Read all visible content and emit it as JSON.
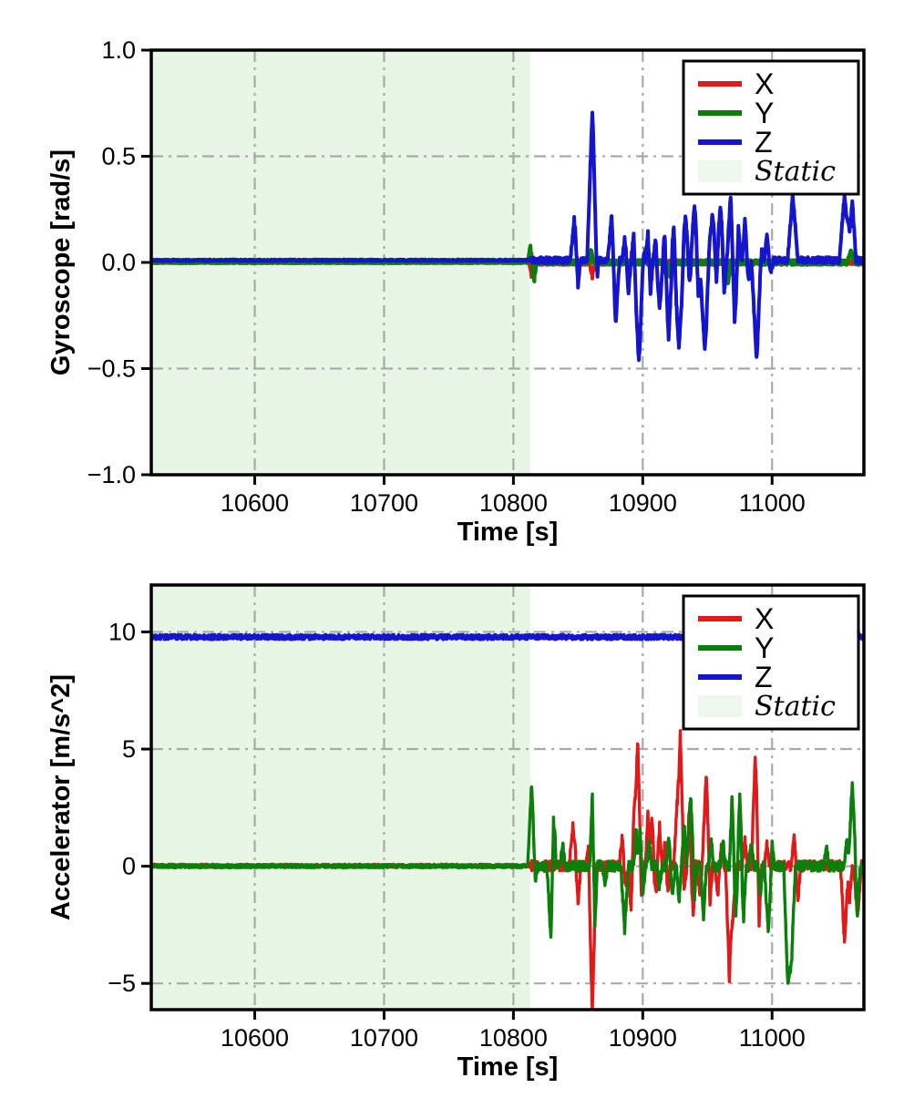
{
  "figure": {
    "background": "#ffffff"
  },
  "colors": {
    "x": "#e01a1a",
    "y": "#0a800a",
    "z": "#1515cd",
    "static_region": "#e8f6e6",
    "legend_swatch": "#edf8ec",
    "grid": "#a9a9a9",
    "axis": "#000000",
    "text": "#000000",
    "legend_bg": "#ffffff"
  },
  "chart_data": [
    {
      "id": "gyroscope",
      "type": "line",
      "title": "",
      "xlabel": "Time [s]",
      "ylabel": "Gyroscope [rad/s]",
      "xlim": [
        10520,
        11071
      ],
      "ylim": [
        -1.0,
        1.0
      ],
      "grid": "dash-dot",
      "xticks": [
        {
          "v": 10600,
          "label": "10600"
        },
        {
          "v": 10700,
          "label": "10700"
        },
        {
          "v": 10800,
          "label": "10800"
        },
        {
          "v": 10900,
          "label": "10900"
        },
        {
          "v": 11000,
          "label": "11000"
        }
      ],
      "yticks": [
        {
          "v": 1.0,
          "label": "1.0"
        },
        {
          "v": 0.5,
          "label": "0.5"
        },
        {
          "v": 0.0,
          "label": "0.0"
        },
        {
          "v": -0.5,
          "label": "−0.5"
        },
        {
          "v": -1.0,
          "label": "−1.0"
        }
      ],
      "static_region": {
        "t0": 10520,
        "t1": 10813
      },
      "legend": {
        "position": "top-right",
        "entries": [
          {
            "label": "X",
            "color": "x"
          },
          {
            "label": "Y",
            "color": "y"
          },
          {
            "label": "Z",
            "color": "z"
          },
          {
            "label": "Static",
            "swatch": "region",
            "italic": true
          }
        ]
      },
      "series": [
        {
          "name": "X",
          "color": "x",
          "seed": 1,
          "baseline": 0.0,
          "noise": [
            [
              10520,
              10813,
              0.004
            ],
            [
              10813,
              11071,
              0.012
            ]
          ],
          "spikes": [
            [
              10814,
              -0.06,
              2
            ],
            [
              10861,
              -0.07,
              2
            ],
            [
              10918,
              -0.05,
              2
            ]
          ]
        },
        {
          "name": "Y",
          "color": "y",
          "seed": 2,
          "baseline": 0.0,
          "noise": [
            [
              10520,
              10813,
              0.004
            ],
            [
              10813,
              11071,
              0.012
            ]
          ],
          "spikes": [
            [
              10813,
              0.08,
              2
            ],
            [
              10816,
              -0.09,
              2
            ],
            [
              10860,
              0.06,
              2
            ],
            [
              10902,
              0.06,
              2
            ],
            [
              10921,
              -0.07,
              2
            ],
            [
              10966,
              -0.1,
              2
            ],
            [
              11061,
              0.05,
              3
            ]
          ]
        },
        {
          "name": "Z",
          "color": "z",
          "seed": 3,
          "baseline": 0.01,
          "noise": [
            [
              10520,
              10813,
              0.004
            ],
            [
              10813,
              11071,
              0.015
            ]
          ],
          "spikes": [
            [
              10847,
              0.19,
              3
            ],
            [
              10850,
              -0.12,
              2
            ],
            [
              10861,
              0.71,
              4
            ],
            [
              10864,
              -0.13,
              2
            ],
            [
              10876,
              0.22,
              3
            ],
            [
              10879,
              -0.3,
              3
            ],
            [
              10886,
              0.1,
              2
            ],
            [
              10889,
              -0.15,
              2
            ],
            [
              10893,
              0.12,
              2
            ],
            [
              10897,
              -0.48,
              4
            ],
            [
              10900,
              0.08,
              2
            ],
            [
              10904,
              0.13,
              2
            ],
            [
              10906,
              -0.16,
              2
            ],
            [
              10910,
              0.1,
              2
            ],
            [
              10913,
              -0.22,
              3
            ],
            [
              10917,
              0.12,
              2
            ],
            [
              10920,
              -0.36,
              3
            ],
            [
              10924,
              0.17,
              2
            ],
            [
              10928,
              -0.41,
              4
            ],
            [
              10933,
              0.21,
              3
            ],
            [
              10936,
              -0.1,
              2
            ],
            [
              10940,
              0.26,
              3
            ],
            [
              10943,
              -0.18,
              2
            ],
            [
              10948,
              -0.43,
              4
            ],
            [
              10951,
              0.1,
              2
            ],
            [
              10954,
              0.22,
              3
            ],
            [
              10957,
              -0.1,
              2
            ],
            [
              10960,
              0.26,
              3
            ],
            [
              10963,
              -0.15,
              2
            ],
            [
              10968,
              0.31,
              3
            ],
            [
              10971,
              -0.28,
              3
            ],
            [
              10974,
              0.15,
              2
            ],
            [
              10979,
              0.19,
              2
            ],
            [
              10982,
              -0.1,
              2
            ],
            [
              10988,
              -0.47,
              4
            ],
            [
              10991,
              0.08,
              2
            ],
            [
              10996,
              0.12,
              2
            ],
            [
              10999,
              -0.06,
              2
            ],
            [
              11016,
              0.31,
              4
            ],
            [
              11056,
              0.31,
              4
            ],
            [
              11059,
              0.1,
              2
            ],
            [
              11062,
              0.28,
              3
            ]
          ]
        }
      ]
    },
    {
      "id": "accelerator",
      "type": "line",
      "title": "",
      "xlabel": "Time [s]",
      "ylabel": "Accelerator [m/s^2]",
      "xlim": [
        10520,
        11071
      ],
      "ylim": [
        -6.12,
        12.0
      ],
      "grid": "dash-dot",
      "xticks": [
        {
          "v": 10600,
          "label": "10600"
        },
        {
          "v": 10700,
          "label": "10700"
        },
        {
          "v": 10800,
          "label": "10800"
        },
        {
          "v": 10900,
          "label": "10900"
        },
        {
          "v": 11000,
          "label": "11000"
        }
      ],
      "yticks": [
        {
          "v": 10,
          "label": "10"
        },
        {
          "v": 5,
          "label": "5"
        },
        {
          "v": 0,
          "label": "0"
        },
        {
          "v": -5,
          "label": "−5"
        }
      ],
      "static_region": {
        "t0": 10520,
        "t1": 10813
      },
      "legend": {
        "position": "top-right",
        "entries": [
          {
            "label": "X",
            "color": "x"
          },
          {
            "label": "Y",
            "color": "y"
          },
          {
            "label": "Z",
            "color": "z"
          },
          {
            "label": "Static",
            "swatch": "region",
            "italic": true
          }
        ]
      },
      "series": [
        {
          "name": "X",
          "color": "x",
          "seed": 4,
          "baseline": 0.02,
          "noise": [
            [
              10520,
              10813,
              0.07
            ],
            [
              10813,
              11071,
              0.22
            ]
          ],
          "spikes": [
            [
              10846,
              1.8,
              3
            ],
            [
              10850,
              -1.6,
              2
            ],
            [
              10858,
              0.9,
              2
            ],
            [
              10861,
              -6.3,
              3
            ],
            [
              10884,
              1.2,
              2
            ],
            [
              10887,
              -1.0,
              2
            ],
            [
              10891,
              -1.9,
              2
            ],
            [
              10893,
              2.1,
              2
            ],
            [
              10896,
              5.4,
              3
            ],
            [
              10899,
              -1.4,
              2
            ],
            [
              10904,
              2.3,
              2
            ],
            [
              10907,
              2.2,
              2
            ],
            [
              10910,
              -1.2,
              2
            ],
            [
              10913,
              1.7,
              2
            ],
            [
              10918,
              1.6,
              2
            ],
            [
              10919,
              -1.8,
              2
            ],
            [
              10926,
              2.2,
              2
            ],
            [
              10929,
              5.7,
              3
            ],
            [
              10932,
              -1.0,
              2
            ],
            [
              10936,
              2.5,
              2
            ],
            [
              10939,
              -2.2,
              2
            ],
            [
              10944,
              -1.2,
              2
            ],
            [
              10949,
              3.9,
              3
            ],
            [
              10952,
              -1.6,
              2
            ],
            [
              10958,
              -1.3,
              2
            ],
            [
              10961,
              0.9,
              2
            ],
            [
              10967,
              -4.8,
              3
            ],
            [
              10970,
              -2.0,
              2
            ],
            [
              10979,
              1.2,
              2
            ],
            [
              10987,
              4.7,
              3
            ],
            [
              10990,
              -2.4,
              2
            ],
            [
              10996,
              1.0,
              2
            ],
            [
              11017,
              1.3,
              2
            ],
            [
              11020,
              -1.5,
              2
            ],
            [
              11056,
              -3.3,
              3
            ],
            [
              11060,
              -1.5,
              2
            ],
            [
              11066,
              -2.2,
              3
            ]
          ]
        },
        {
          "name": "Y",
          "color": "y",
          "seed": 5,
          "baseline": 0.0,
          "noise": [
            [
              10520,
              10813,
              0.07
            ],
            [
              10813,
              11071,
              0.22
            ]
          ],
          "spikes": [
            [
              10814,
              3.5,
              3
            ],
            [
              10817,
              -0.8,
              2
            ],
            [
              10829,
              -3.2,
              3
            ],
            [
              10831,
              3.0,
              2
            ],
            [
              10838,
              0.9,
              2
            ],
            [
              10861,
              3.0,
              2
            ],
            [
              10863,
              -2.5,
              2
            ],
            [
              10871,
              -0.8,
              2
            ],
            [
              10886,
              -2.7,
              3
            ],
            [
              10895,
              1.5,
              2
            ],
            [
              10898,
              1.4,
              2
            ],
            [
              10900,
              -1.2,
              2
            ],
            [
              10905,
              1.0,
              2
            ],
            [
              10913,
              -0.9,
              2
            ],
            [
              10920,
              1.2,
              2
            ],
            [
              10923,
              -1.1,
              2
            ],
            [
              10928,
              -1.5,
              2
            ],
            [
              10932,
              1.9,
              2
            ],
            [
              10937,
              3.0,
              3
            ],
            [
              10940,
              -1.3,
              2
            ],
            [
              10947,
              -2.4,
              2
            ],
            [
              10953,
              1.0,
              2
            ],
            [
              10962,
              1.1,
              2
            ],
            [
              10969,
              2.9,
              2
            ],
            [
              10972,
              -2.0,
              2
            ],
            [
              10975,
              3.0,
              2
            ],
            [
              10978,
              -2.2,
              2
            ],
            [
              10984,
              1.1,
              2
            ],
            [
              10991,
              -1.2,
              2
            ],
            [
              10997,
              -2.8,
              3
            ],
            [
              11000,
              1.0,
              2
            ],
            [
              11012,
              -4.9,
              3
            ],
            [
              11015,
              -4.2,
              3
            ],
            [
              11042,
              0.8,
              2
            ],
            [
              11058,
              1.2,
              2
            ],
            [
              11062,
              3.7,
              3
            ],
            [
              11066,
              -2.1,
              2
            ]
          ]
        },
        {
          "name": "Z",
          "color": "z",
          "seed": 6,
          "baseline": 9.78,
          "noise": [
            [
              10520,
              11071,
              0.11
            ]
          ],
          "spikes": []
        }
      ]
    }
  ]
}
